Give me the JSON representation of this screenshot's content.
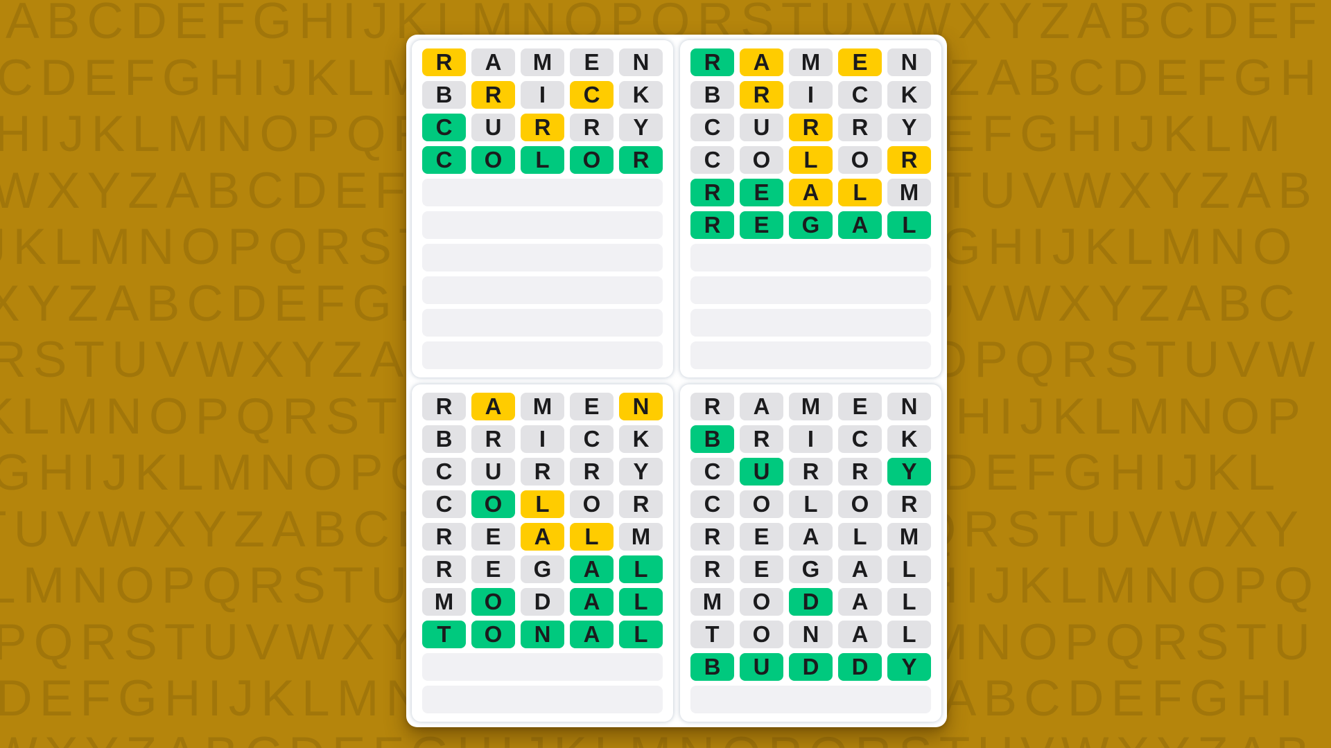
{
  "background": {
    "color": "#b5850c",
    "letter_color": "rgba(45,32,2,0.15)",
    "rows": [
      "ABCDEFGHIJKLMNOPQRSTUVWXYZABCDEF",
      "CDEFGHIJKLMNOPQRSTUVWXYZABCDEFGH",
      "HIJKLMNOPQRSTUVWXYZABCDEFGHIJKLM",
      "WXYZABCDEFGHIJKLMNOPQRSTUVWXYZAB",
      "JKLMNOPQRSTUVWXYZABCDEFGHIJKLMNO",
      "XYZABCDEFGHIJKLMNOPQRSTUVWXYZABC",
      "RSTUVWXYZABCDEFGHIJKLMNOPQRSTUVW",
      "KLMNOPQRSTUVWXYZABCDEFGHIJKLMNOP",
      "GHIJKLMNOPQRSTUVWXYZABCDEFGHIJKL",
      "TUVWXYZABCDEFGHIJKLMNOPQRSTUVWXY",
      "LMNOPQRSTUVWXYZABCDEFGHIJKLMNOPQ",
      "PQRSTUVWXYZABCDEFGHIJKLMNOPQRSTU",
      "DEFGHIJKLMNOPQRSTUVWXYZABCDEFGHI",
      "WXYZABCDEFGHIJKLMNOPQRSTUVWXYZAB"
    ],
    "row_offsets": [
      8,
      -5,
      -8,
      -12,
      -28,
      -20,
      -15,
      -28,
      -12,
      -35,
      -18,
      -10,
      -6,
      -15
    ]
  },
  "game": {
    "columns": 5,
    "rows_per_board": 10,
    "colors": {
      "correct": "#00c97e",
      "present": "#ffcc00",
      "absent": "#e2e2e5",
      "empty_row": "#f1f1f4",
      "tile_text": "#1b1b1d"
    },
    "boards": [
      {
        "id": "top-left",
        "guesses": [
          {
            "word": "RAMEN",
            "states": "paaaa"
          },
          {
            "word": "BRICK",
            "states": "apapa"
          },
          {
            "word": "CURRY",
            "states": "capaa"
          },
          {
            "word": "COLOR",
            "states": "ccccc"
          }
        ]
      },
      {
        "id": "top-right",
        "guesses": [
          {
            "word": "RAMEN",
            "states": "cpapa"
          },
          {
            "word": "BRICK",
            "states": "apaaa"
          },
          {
            "word": "CURRY",
            "states": "aapaa"
          },
          {
            "word": "COLOR",
            "states": "aapap"
          },
          {
            "word": "REALM",
            "states": "ccppa"
          },
          {
            "word": "REGAL",
            "states": "ccccc"
          }
        ]
      },
      {
        "id": "bottom-left",
        "guesses": [
          {
            "word": "RAMEN",
            "states": "apaap"
          },
          {
            "word": "BRICK",
            "states": "aaaaa"
          },
          {
            "word": "CURRY",
            "states": "aaaaa"
          },
          {
            "word": "COLOR",
            "states": "acpaa"
          },
          {
            "word": "REALM",
            "states": "aappa"
          },
          {
            "word": "REGAL",
            "states": "aaacc"
          },
          {
            "word": "MODAL",
            "states": "acacc"
          },
          {
            "word": "TONAL",
            "states": "ccccc"
          }
        ]
      },
      {
        "id": "bottom-right",
        "guesses": [
          {
            "word": "RAMEN",
            "states": "aaaaa"
          },
          {
            "word": "BRICK",
            "states": "caaaa"
          },
          {
            "word": "CURRY",
            "states": "acaac"
          },
          {
            "word": "COLOR",
            "states": "aaaaa"
          },
          {
            "word": "REALM",
            "states": "aaaaa"
          },
          {
            "word": "REGAL",
            "states": "aaaaa"
          },
          {
            "word": "MODAL",
            "states": "aacaa"
          },
          {
            "word": "TONAL",
            "states": "aaaaa"
          },
          {
            "word": "BUDDY",
            "states": "ccccc"
          }
        ]
      }
    ]
  }
}
